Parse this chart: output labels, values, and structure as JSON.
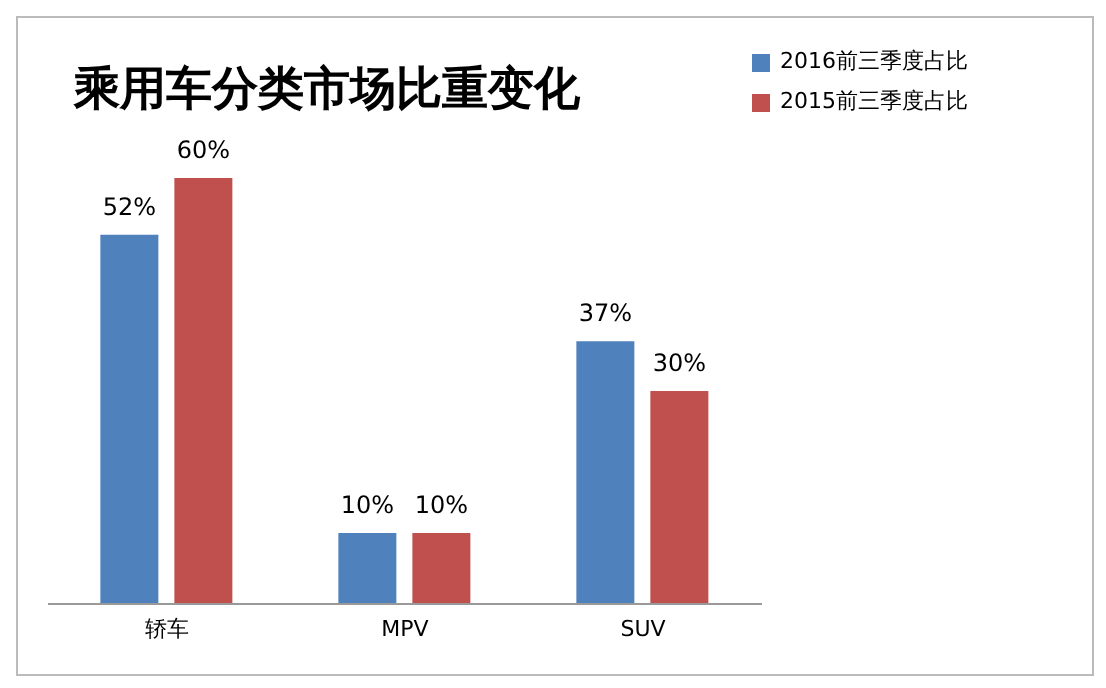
{
  "chart_data": {
    "type": "bar",
    "title": "乘用车分类市场比重变化",
    "categories": [
      "轿车",
      "MPV",
      "SUV"
    ],
    "series": [
      {
        "name": "2016前三季度占比",
        "color": "#4f81bd",
        "values": [
          52,
          10,
          37
        ],
        "value_labels": [
          "52%",
          "10%",
          "37%"
        ]
      },
      {
        "name": "2015前三季度占比",
        "color": "#c0504d",
        "values": [
          60,
          10,
          30
        ],
        "value_labels": [
          "60%",
          "10%",
          "30%"
        ]
      }
    ],
    "legend": "top right",
    "grid": false
  }
}
